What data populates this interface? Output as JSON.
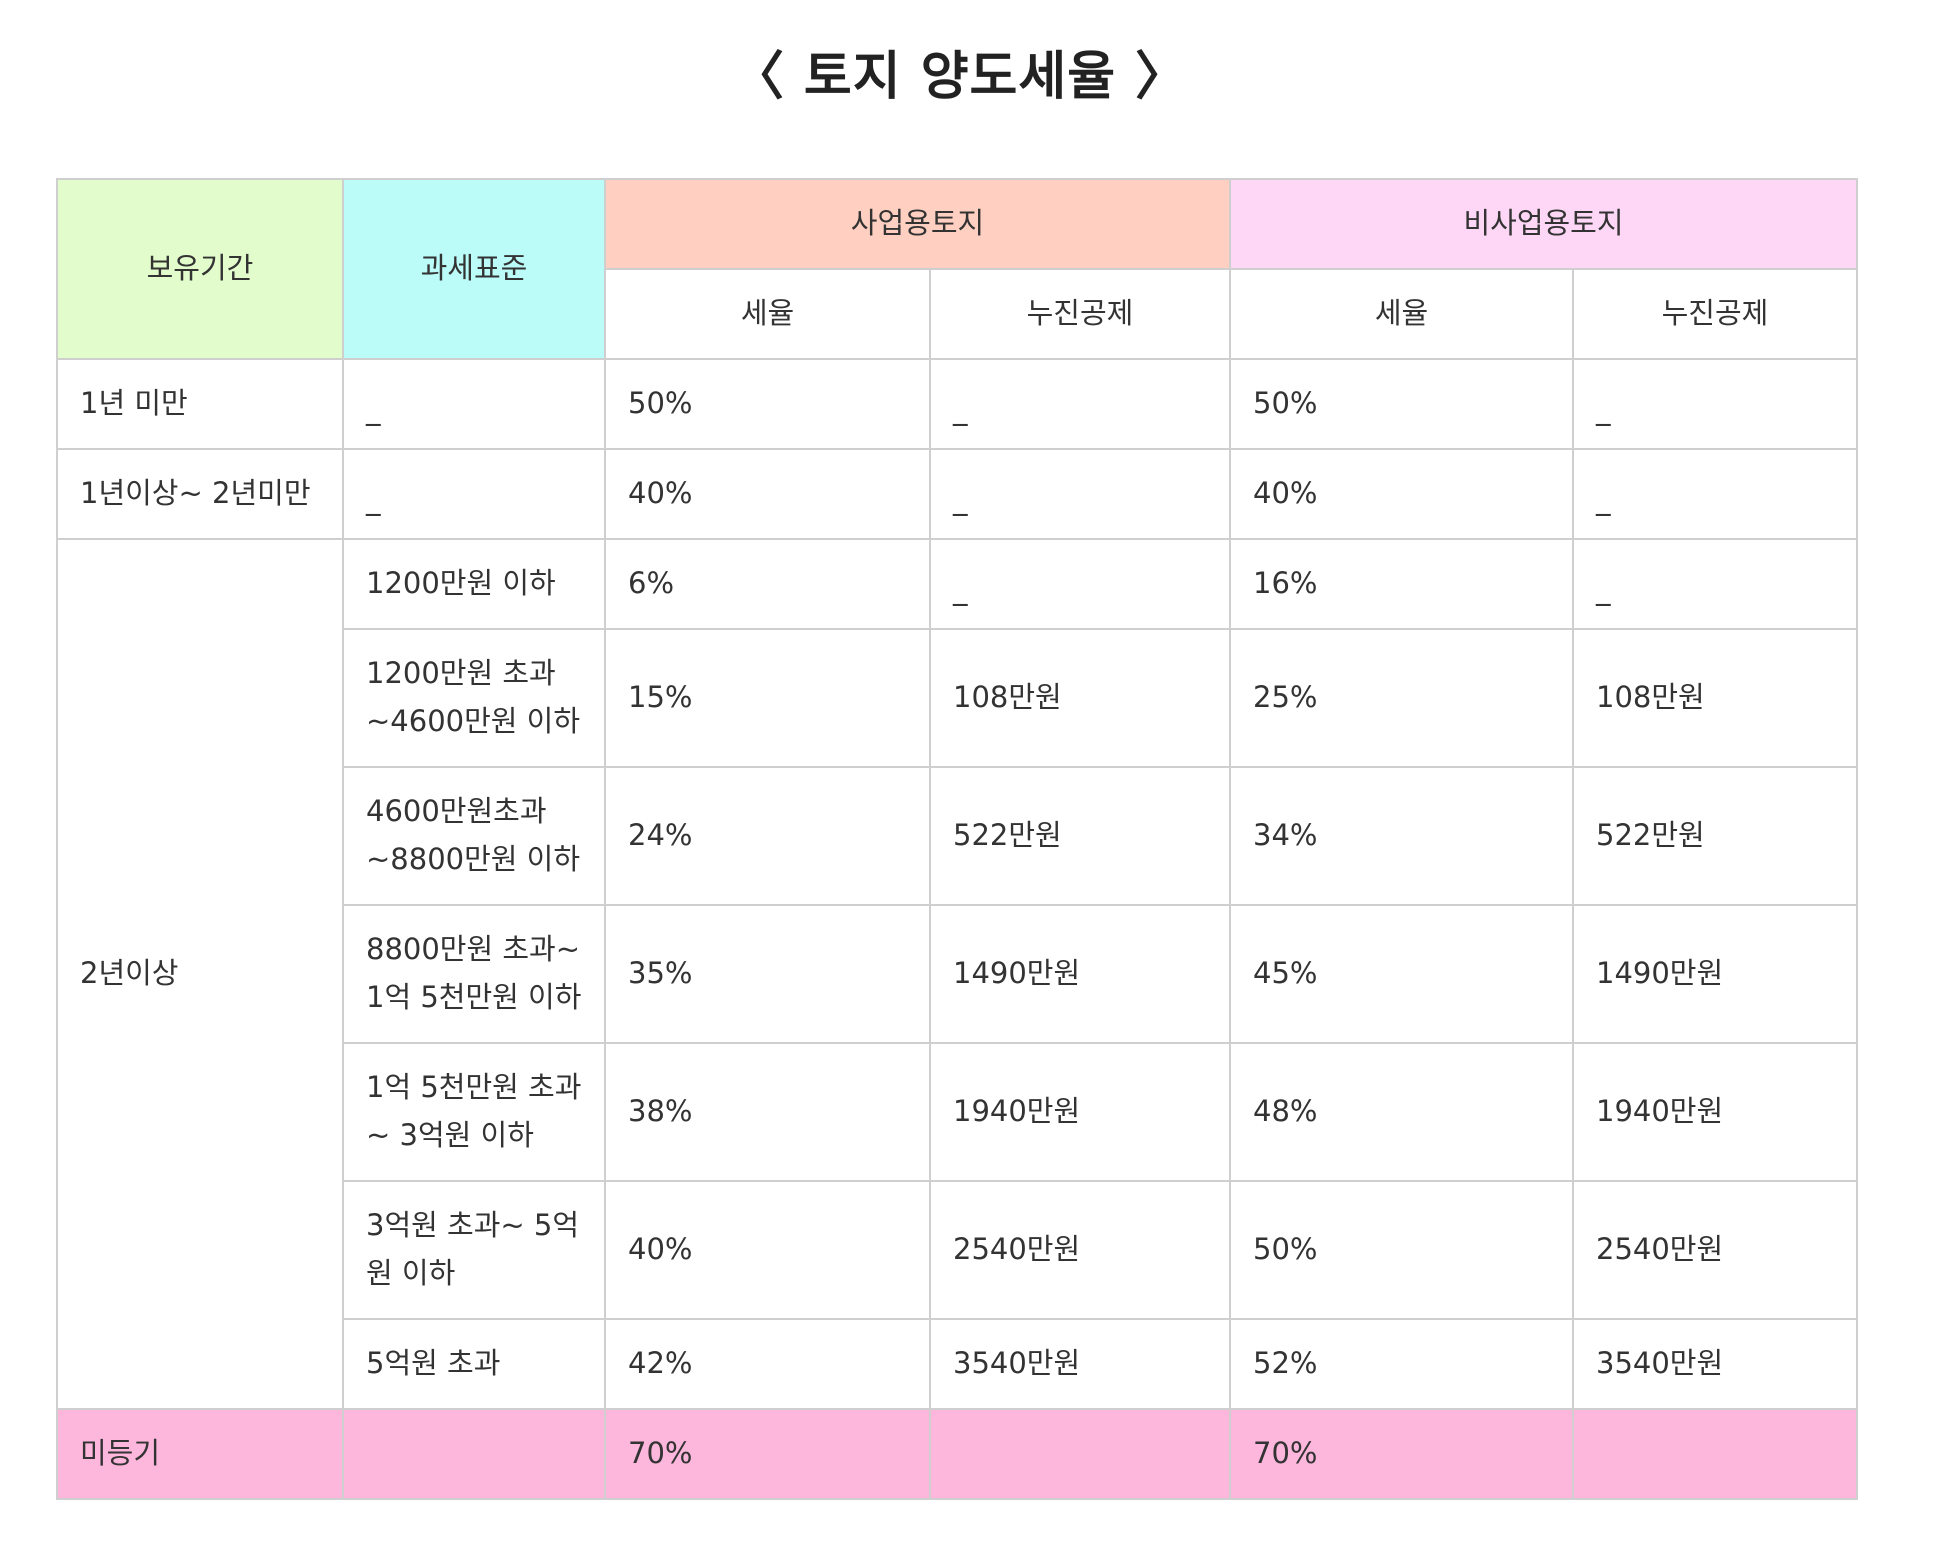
{
  "title": "〈 토지 양도세율 〉",
  "header": {
    "period": "보유기간",
    "tax_base": "과세표준",
    "business_land": "사업용토지",
    "non_business_land": "비사업용토지",
    "rate": "세율",
    "deduction": "누진공제"
  },
  "colors": {
    "period_header": "#e2fccb",
    "tax_base_header": "#bbfbf8",
    "business_header": "#ffcfc1",
    "non_business_header": "#fdd7f5",
    "unregistered_row": "#fdb6dc"
  },
  "rows": [
    {
      "period": "1년 미만",
      "tax_base": "_",
      "biz_rate": "50%",
      "biz_deduction": "_",
      "nonbiz_rate": "50%",
      "nonbiz_deduction": "_"
    },
    {
      "period": "1년이상~ 2년미만",
      "tax_base": "_",
      "biz_rate": "40%",
      "biz_deduction": "_",
      "nonbiz_rate": "40%",
      "nonbiz_deduction": "_"
    }
  ],
  "two_years_plus": {
    "period": "2년이상",
    "brackets": [
      {
        "tax_base_1": "1200만원 이하",
        "tax_base_2": "",
        "biz_rate": "6%",
        "biz_deduction": "_",
        "nonbiz_rate": "16%",
        "nonbiz_deduction": "_"
      },
      {
        "tax_base_1": "1200만원 초과",
        "tax_base_2": "~4600만원 이하",
        "biz_rate": "15%",
        "biz_deduction": "108만원",
        "nonbiz_rate": "25%",
        "nonbiz_deduction": "108만원"
      },
      {
        "tax_base_1": "4600만원초과",
        "tax_base_2": "~8800만원 이하",
        "biz_rate": "24%",
        "biz_deduction": "522만원",
        "nonbiz_rate": "34%",
        "nonbiz_deduction": "522만원"
      },
      {
        "tax_base_1": "8800만원 초과~",
        "tax_base_2": "1억 5천만원 이하",
        "biz_rate": "35%",
        "biz_deduction": "1490만원",
        "nonbiz_rate": "45%",
        "nonbiz_deduction": "1490만원"
      },
      {
        "tax_base_1": "1억 5천만원 초과",
        "tax_base_2": "~ 3억원 이하",
        "biz_rate": "38%",
        "biz_deduction": "1940만원",
        "nonbiz_rate": "48%",
        "nonbiz_deduction": "1940만원"
      },
      {
        "tax_base_1": "3억원 초과~ 5억",
        "tax_base_2": "원 이하",
        "biz_rate": "40%",
        "biz_deduction": "2540만원",
        "nonbiz_rate": "50%",
        "nonbiz_deduction": "2540만원"
      },
      {
        "tax_base_1": "5억원 초과",
        "tax_base_2": "",
        "biz_rate": "42%",
        "biz_deduction": "3540만원",
        "nonbiz_rate": "52%",
        "nonbiz_deduction": "3540만원"
      }
    ]
  },
  "unregistered": {
    "period": "미등기",
    "tax_base": "",
    "biz_rate": "70%",
    "biz_deduction": "",
    "nonbiz_rate": "70%",
    "nonbiz_deduction": ""
  }
}
